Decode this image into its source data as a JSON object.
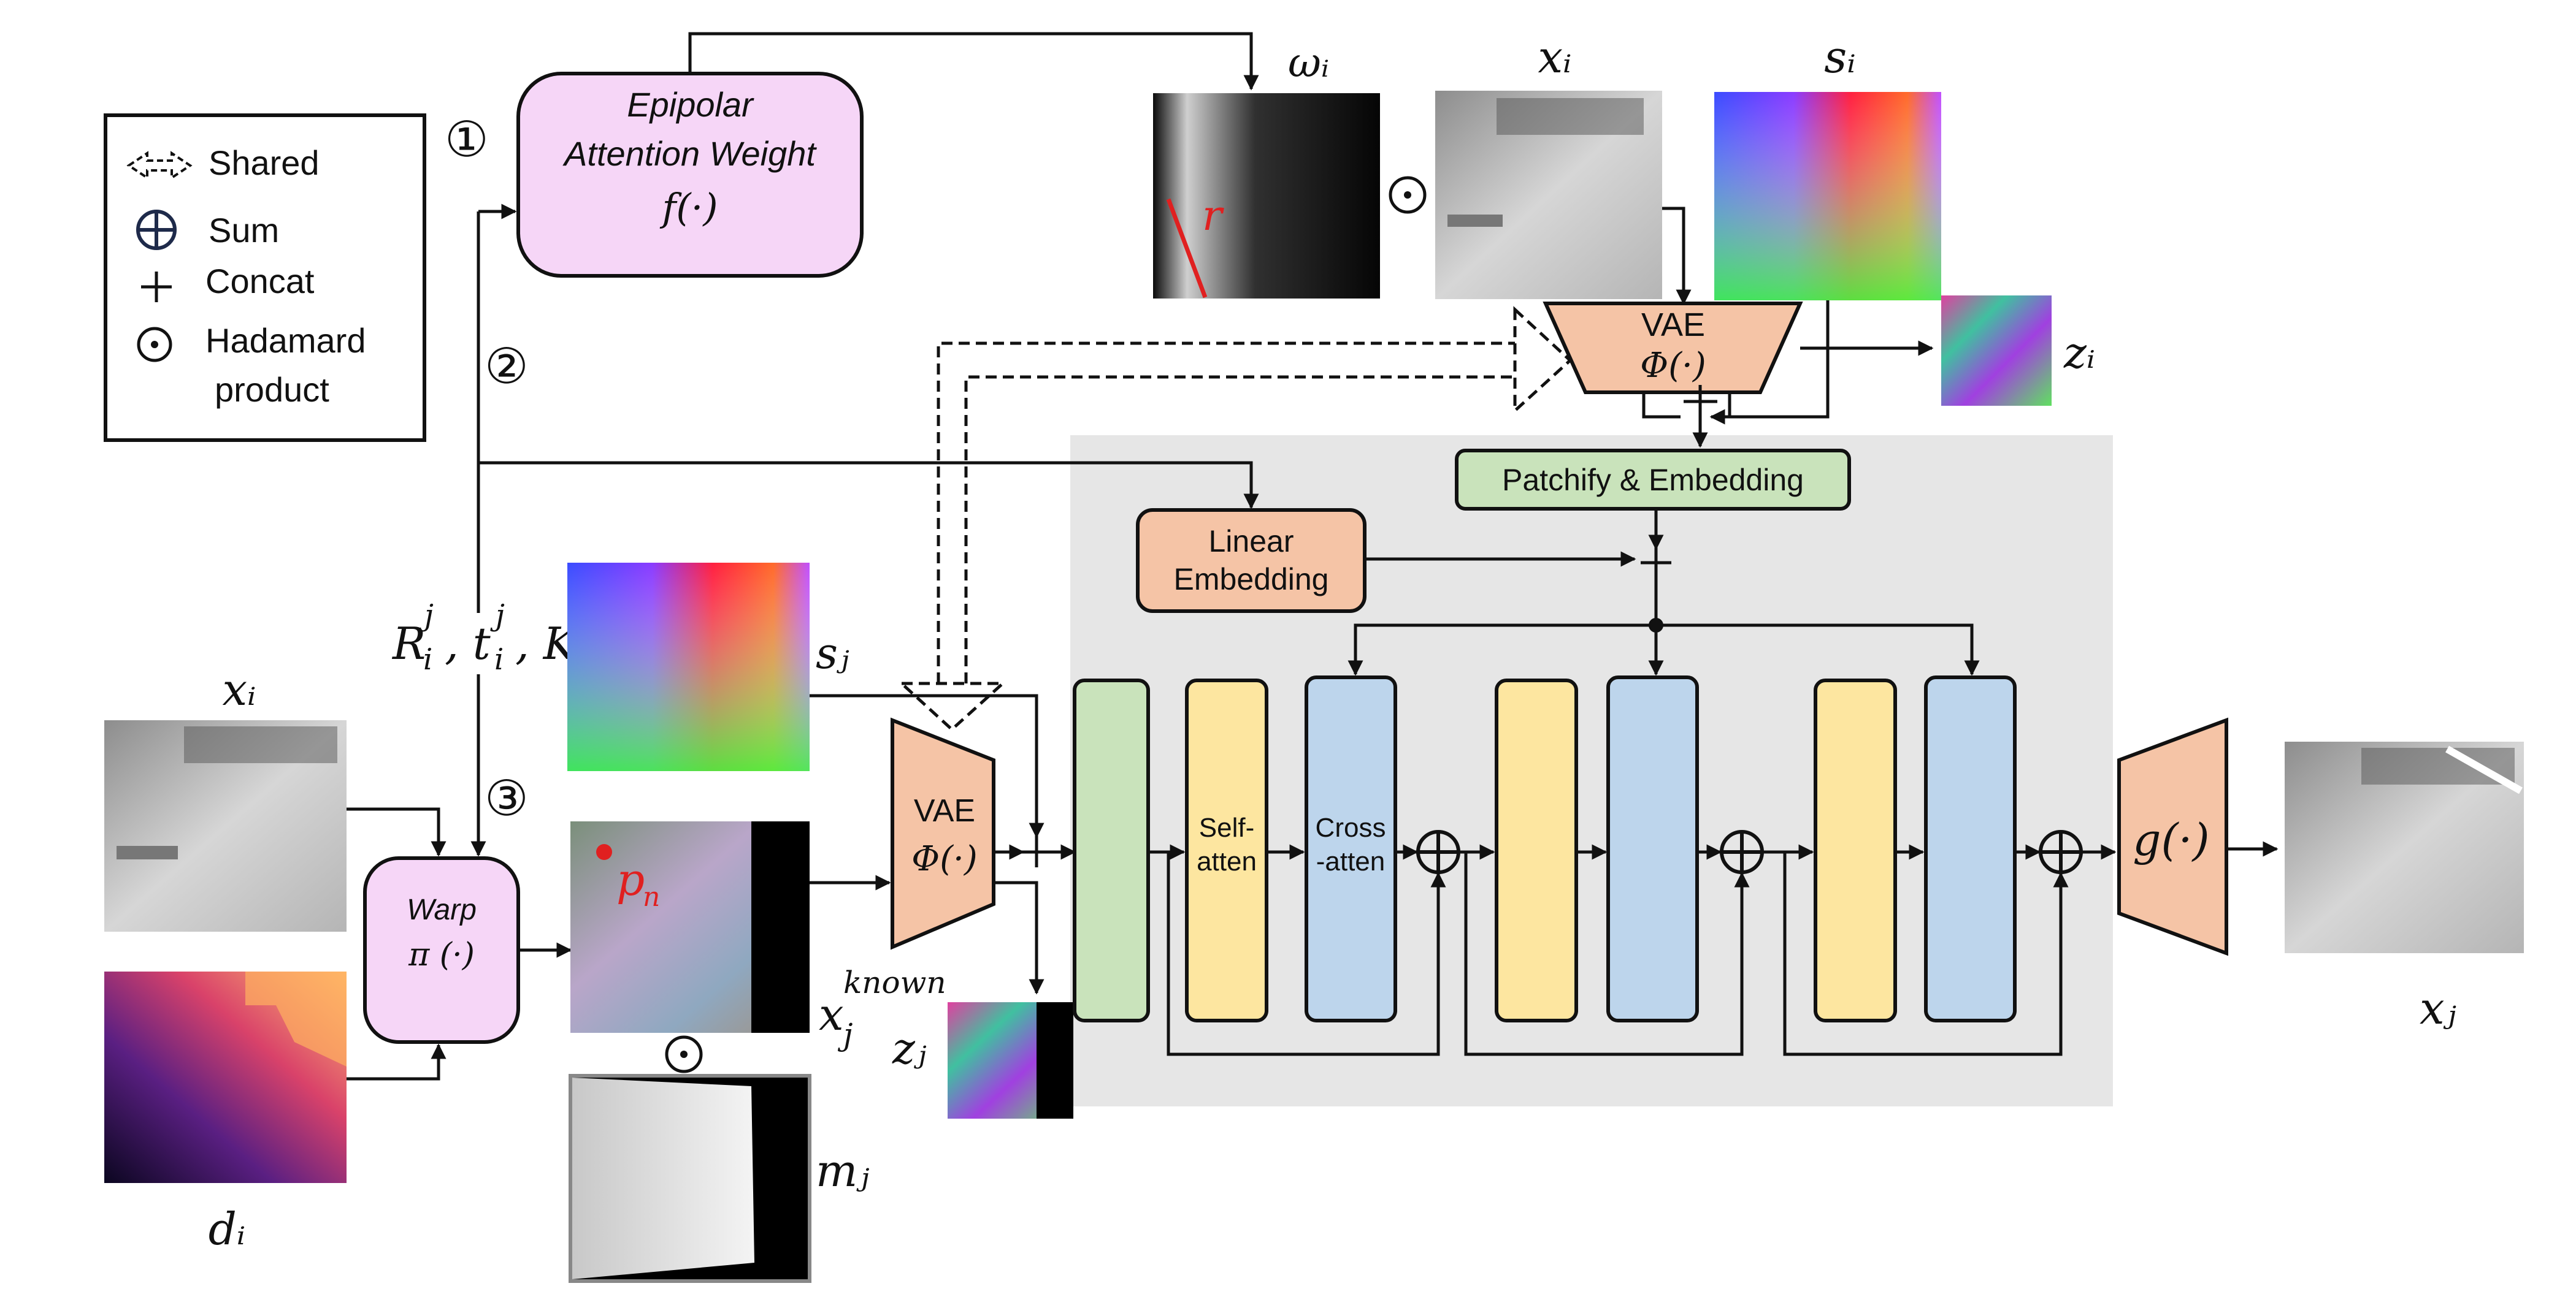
{
  "legend": {
    "shared": "Shared",
    "sum": "Sum",
    "concat": "Concat",
    "hadamard_line1": "Hadamard",
    "hadamard_line2": "product"
  },
  "steps": {
    "one": "①",
    "two": "②",
    "three": "③"
  },
  "epipolar": {
    "line1": "Epipolar",
    "line2": "Attention Weight",
    "func": "f(·)"
  },
  "warp": {
    "title": "Warp",
    "func": "π (·)"
  },
  "vae_top": {
    "title": "VAE",
    "func": "Φ(·)"
  },
  "vae_mid": {
    "title": "VAE",
    "func": "Φ(·)"
  },
  "patchify": "Patchify & Embedding",
  "linear_embedding": {
    "line1": "Linear",
    "line2": "Embedding"
  },
  "self_atten": {
    "line1": "Self-",
    "line2": "atten"
  },
  "cross_atten": {
    "line1": "Cross",
    "line2": "-atten"
  },
  "decoder": "g(·)",
  "pose": "R",
  "symbols": {
    "omega_i": "ωᵢ",
    "x_i_top": "xᵢ",
    "s_i": "sᵢ",
    "z_i": "zᵢ",
    "x_i_left": "xᵢ",
    "d_i": "dᵢ",
    "s_j": "sⱼ",
    "x_j_known": "known",
    "z_j": "zⱼ",
    "m_j": "mⱼ",
    "x_j_out": "xⱼ",
    "p_n": "p",
    "r_line": "r",
    "odot": "⊙",
    "plus": "+"
  },
  "colors": {
    "pink": "#f6d6f7",
    "orange": "#f5c4a6",
    "green": "#c9e3bb",
    "yellow": "#fde6a0",
    "blue": "#bdd5ec",
    "panel": "#e8e8e8",
    "accent_red": "#e02020"
  }
}
